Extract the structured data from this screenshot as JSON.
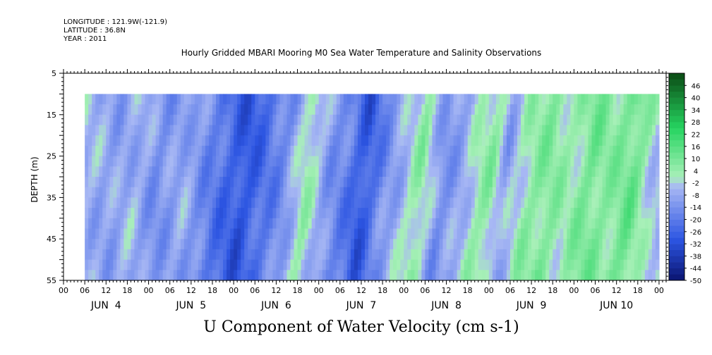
{
  "header": {
    "longitude": "LONGITUDE : 121.9W(-121.9)",
    "latitude": "LATITUDE : 36.8N",
    "year": "YEAR : 2011"
  },
  "chart_data": {
    "type": "heatmap",
    "title": "Hourly Gridded MBARI Mooring M0 Sea Water Temperature and Salinity Observations",
    "xlabel": "U Component of Water Velocity (cm s-1)",
    "ylabel": "DEPTH (m)",
    "ylim": [
      5,
      55
    ],
    "y_inverted": true,
    "y_ticks": [
      5,
      15,
      25,
      35,
      45,
      55
    ],
    "x_hour_ticks": [
      "00",
      "06",
      "12",
      "18",
      "00",
      "06",
      "12",
      "18",
      "00",
      "06",
      "12",
      "18",
      "00",
      "06",
      "12",
      "18",
      "00",
      "06",
      "12",
      "18",
      "00",
      "06",
      "12",
      "18",
      "00",
      "06",
      "12",
      "18",
      "00"
    ],
    "x_days": [
      "JUN  4",
      "JUN  5",
      "JUN  6",
      "JUN  7",
      "JUN  8",
      "JUN  9",
      "JUN 10"
    ],
    "data_depth_range": [
      10,
      55
    ],
    "data_hour_range": [
      6,
      168
    ],
    "colorbar_labels": [
      "46",
      "40",
      "34",
      "28",
      "22",
      "16",
      "10",
      "4",
      "-2",
      "-8",
      "-14",
      "-20",
      "-26",
      "-32",
      "-38",
      "-44",
      "-50"
    ],
    "colorbar_range": [
      -50,
      52
    ],
    "colors": {
      "neg_strong": "#0a1470",
      "neg_mid": "#2c55e2",
      "neg_light": "#a8b8f4",
      "pos_light": "#a8f0b8",
      "pos_mid": "#26d460",
      "pos_strong": "#0a4a14"
    }
  }
}
